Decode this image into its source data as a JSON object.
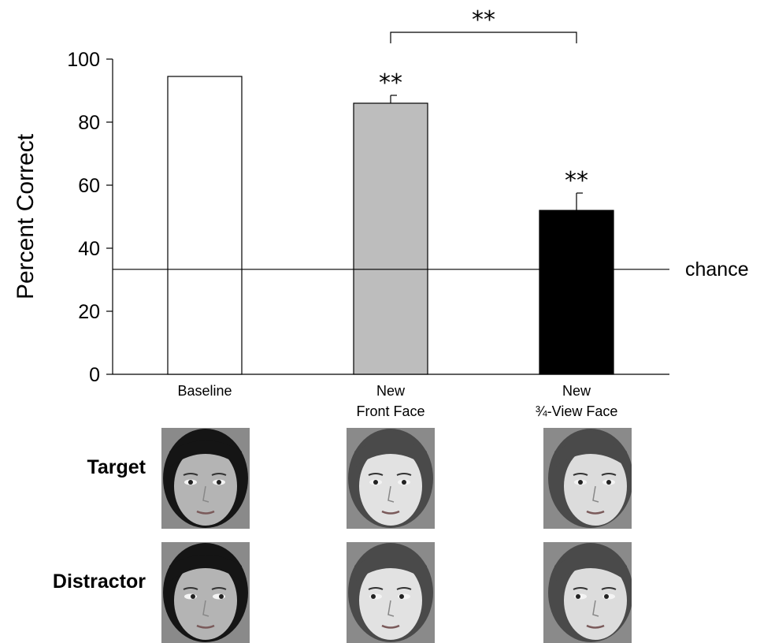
{
  "chart_data": {
    "type": "bar",
    "categories": [
      [
        "Baseline"
      ],
      [
        "New",
        "Front Face"
      ],
      [
        "New",
        "¾-View Face"
      ]
    ],
    "values": [
      94.5,
      86,
      52
    ],
    "errors": [
      null,
      2.5,
      5.5
    ],
    "bar_colors": [
      "#ffffff",
      "#bdbdbd",
      "#000000"
    ],
    "ylabel": "Percent Correct",
    "ylim": [
      0,
      100
    ],
    "yticks": [
      0,
      20,
      40,
      60,
      80,
      100
    ],
    "chance_level": 33.3,
    "chance_label": "chance",
    "bar_annotations": [
      "",
      "**",
      "**"
    ],
    "bracket": {
      "from": 1,
      "to": 2,
      "label": "**"
    }
  },
  "stimuli": {
    "rows": [
      {
        "label": "Target",
        "faces": [
          {
            "icon": "face-photo-icon",
            "hair": "#151515",
            "skin": "#b4b4b4",
            "gaze": "center",
            "view": "front"
          },
          {
            "icon": "face-photo-icon",
            "hair": "#4a4a4a",
            "skin": "#e2e2e2",
            "gaze": "center",
            "view": "front"
          },
          {
            "icon": "face-photo-icon",
            "hair": "#4a4a4a",
            "skin": "#dcdcdc",
            "gaze": "center",
            "view": "three-quarter"
          }
        ]
      },
      {
        "label": "Distractor",
        "faces": [
          {
            "icon": "face-photo-icon",
            "hair": "#151515",
            "skin": "#b4b4b4",
            "gaze": "right",
            "view": "front"
          },
          {
            "icon": "face-photo-icon",
            "hair": "#4a4a4a",
            "skin": "#e2e2e2",
            "gaze": "left",
            "view": "front"
          },
          {
            "icon": "face-photo-icon",
            "hair": "#4a4a4a",
            "skin": "#dcdcdc",
            "gaze": "left",
            "view": "three-quarter"
          }
        ]
      }
    ]
  }
}
